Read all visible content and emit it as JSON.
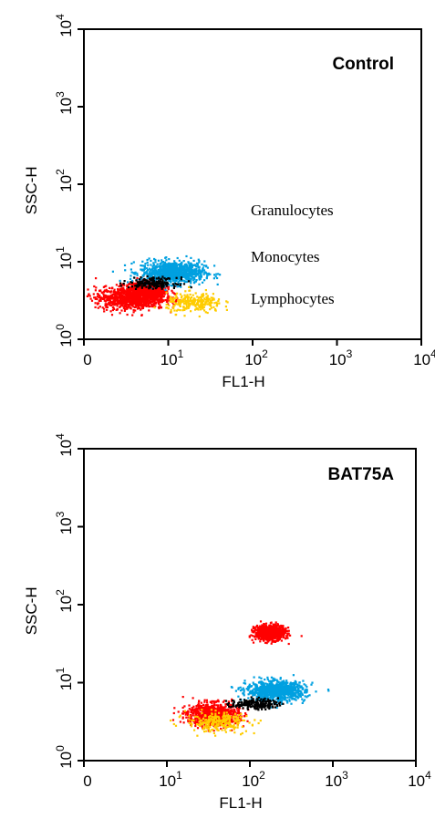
{
  "chart_data": [
    {
      "type": "scatter",
      "title": "Control",
      "xlabel": "FL1-H",
      "ylabel": "SSC-H",
      "x_scale": "log",
      "y_scale": "log",
      "xlim": [
        1,
        10000
      ],
      "ylim": [
        1,
        10000
      ],
      "x_ticks": [
        {
          "base": "0",
          "exp": ""
        },
        {
          "base": "10",
          "exp": "1"
        },
        {
          "base": "10",
          "exp": "2"
        },
        {
          "base": "10",
          "exp": "3"
        },
        {
          "base": "10",
          "exp": "4"
        }
      ],
      "y_ticks": [
        {
          "base": "10",
          "exp": "0"
        },
        {
          "base": "10",
          "exp": "1"
        },
        {
          "base": "10",
          "exp": "2"
        },
        {
          "base": "10",
          "exp": "3"
        },
        {
          "base": "10",
          "exp": "4"
        }
      ],
      "annotations": [
        "Granulocytes",
        "Monocytes",
        "Lymphocytes"
      ],
      "series": [
        {
          "color": "#ff0000",
          "cx": 5.5,
          "cy": 4.5,
          "spread_x": 1.55,
          "spread_y": 1.25
        },
        {
          "color": "#00a0e0",
          "cx": 11,
          "cy": 7.5,
          "spread_x": 2.2,
          "spread_y": 1.35
        },
        {
          "color": "#ff0000",
          "cx": 3.5,
          "cy": 3.5,
          "spread_x": 2.4,
          "spread_y": 1.35
        },
        {
          "color": "#ffcc00",
          "cx": 20,
          "cy": 3.0,
          "spread_x": 2.0,
          "spread_y": 1.3
        },
        {
          "color": "#000000",
          "cx": 6.5,
          "cy": 5.5,
          "spread_x": 1.8,
          "spread_y": 1.15
        }
      ]
    },
    {
      "type": "scatter",
      "title": "BAT75A",
      "xlabel": "FL1-H",
      "ylabel": "SSC-H",
      "x_scale": "log",
      "y_scale": "log",
      "xlim": [
        1,
        10000
      ],
      "ylim": [
        1,
        10000
      ],
      "x_ticks": [
        {
          "base": "0",
          "exp": ""
        },
        {
          "base": "10",
          "exp": "1"
        },
        {
          "base": "10",
          "exp": "2"
        },
        {
          "base": "10",
          "exp": "3"
        },
        {
          "base": "10",
          "exp": "4"
        }
      ],
      "y_ticks": [
        {
          "base": "10",
          "exp": "0"
        },
        {
          "base": "10",
          "exp": "1"
        },
        {
          "base": "10",
          "exp": "2"
        },
        {
          "base": "10",
          "exp": "3"
        },
        {
          "base": "10",
          "exp": "4"
        }
      ],
      "annotations": [],
      "series": [
        {
          "color": "#ff0000",
          "cx": 170,
          "cy": 45,
          "spread_x": 1.45,
          "spread_y": 1.22
        },
        {
          "color": "#00a0e0",
          "cx": 200,
          "cy": 8,
          "spread_x": 2.1,
          "spread_y": 1.3
        },
        {
          "color": "#ff0000",
          "cx": 35,
          "cy": 4,
          "spread_x": 1.9,
          "spread_y": 1.35
        },
        {
          "color": "#ffcc00",
          "cx": 40,
          "cy": 3.2,
          "spread_x": 2.2,
          "spread_y": 1.3
        },
        {
          "color": "#000000",
          "cx": 110,
          "cy": 5.5,
          "spread_x": 1.8,
          "spread_y": 1.15
        }
      ]
    }
  ]
}
